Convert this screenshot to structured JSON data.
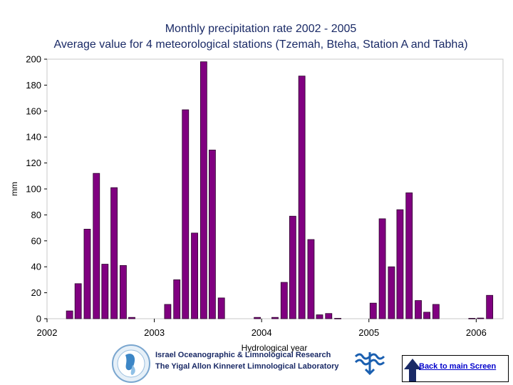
{
  "chart_data": {
    "type": "bar",
    "title": "Monthly precipitation rate 2002 - 2005",
    "subtitle": "Average value for 4 meteorological stations (Tzemah, Bteha, Station A and Tabha)",
    "xlabel": "Hydrological year",
    "ylabel": "mm",
    "ylim": [
      0,
      200
    ],
    "yticks": [
      0,
      20,
      40,
      60,
      80,
      100,
      120,
      140,
      160,
      180,
      200
    ],
    "xlim": [
      2002,
      2006.25
    ],
    "xticks": [
      "2002",
      "2003",
      "2004",
      "2005",
      "2006"
    ],
    "grid": false,
    "bar_color": "#800080",
    "x": [
      2002.04,
      2002.125,
      2002.21,
      2002.29,
      2002.375,
      2002.46,
      2002.54,
      2002.625,
      2002.71,
      2002.79,
      2002.875,
      2002.96,
      2003.04,
      2003.125,
      2003.21,
      2003.29,
      2003.375,
      2003.46,
      2003.54,
      2003.625,
      2003.71,
      2003.79,
      2003.875,
      2003.96,
      2004.04,
      2004.125,
      2004.21,
      2004.29,
      2004.375,
      2004.46,
      2004.54,
      2004.625,
      2004.71,
      2004.79,
      2004.875,
      2004.96,
      2005.04,
      2005.125,
      2005.21,
      2005.29,
      2005.375,
      2005.46,
      2005.54,
      2005.625,
      2005.71,
      2005.79,
      2005.875,
      2005.96,
      2006.04,
      2006.125,
      2006.21
    ],
    "values": [
      0,
      0,
      6,
      27,
      69,
      112,
      42,
      101,
      41,
      1,
      0,
      0,
      0,
      11,
      30,
      161,
      66,
      198,
      130,
      16,
      0,
      0,
      0,
      1,
      0,
      1,
      28,
      79,
      187,
      61,
      3,
      4,
      0.3,
      0,
      0,
      0,
      12,
      77,
      40,
      84,
      97,
      14,
      5,
      11,
      0,
      0,
      0,
      0.3,
      0.5,
      18,
      0
    ]
  },
  "footer": {
    "line1": "Israel Oceanographic & Limnological Research",
    "line2": "The Yigal Allon Kinneret Limnological Laboratory",
    "back_link": "Back to main Screen"
  }
}
